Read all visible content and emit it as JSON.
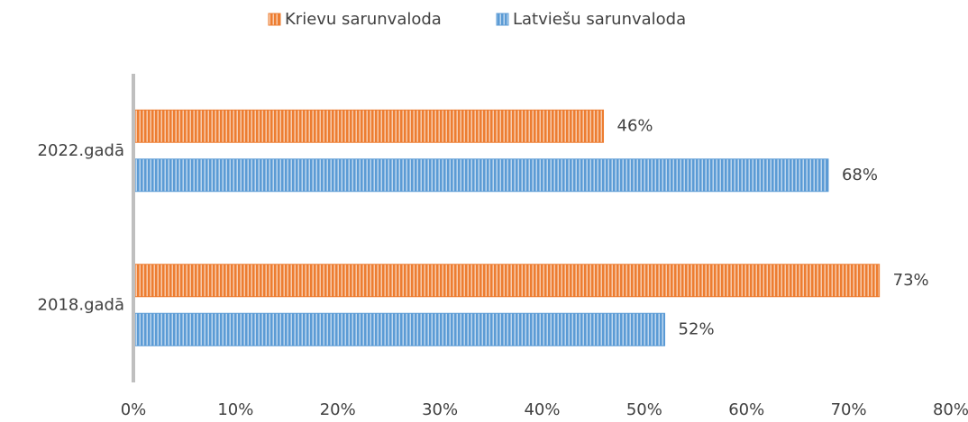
{
  "chart_data": {
    "type": "bar",
    "orientation": "horizontal",
    "categories": [
      "2022.gadā",
      "2018.gadā"
    ],
    "series": [
      {
        "name": "Krievu sarunvaloda",
        "color": "#ed7d31",
        "values": [
          46,
          73
        ],
        "value_labels": [
          "46%",
          "73%"
        ]
      },
      {
        "name": "Latviešu sarunvaloda",
        "color": "#5b9bd5",
        "values": [
          68,
          52
        ],
        "value_labels": [
          "68%",
          "52%"
        ]
      }
    ],
    "xlim": [
      0,
      80
    ],
    "xticks": [
      {
        "value": 0,
        "label": "0%"
      },
      {
        "value": 10,
        "label": "10%"
      },
      {
        "value": 20,
        "label": "20%"
      },
      {
        "value": 30,
        "label": "30%"
      },
      {
        "value": 40,
        "label": "40%"
      },
      {
        "value": 50,
        "label": "50%"
      },
      {
        "value": 60,
        "label": "60%"
      },
      {
        "value": 70,
        "label": "70%"
      },
      {
        "value": 80,
        "label": "80%"
      }
    ],
    "legend": "top"
  }
}
